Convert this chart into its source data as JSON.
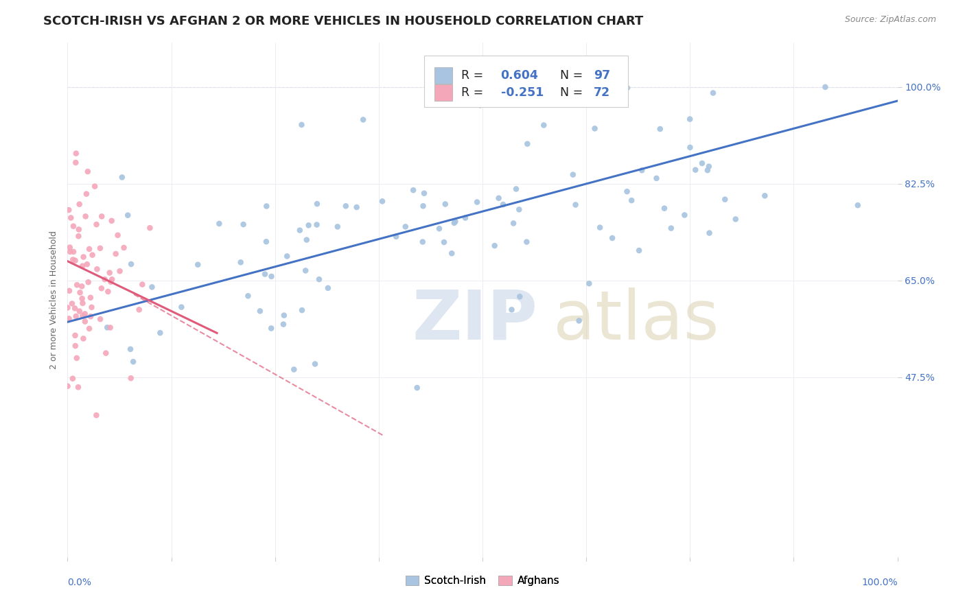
{
  "title": "SCOTCH-IRISH VS AFGHAN 2 OR MORE VEHICLES IN HOUSEHOLD CORRELATION CHART",
  "source": "Source: ZipAtlas.com",
  "ylabel": "2 or more Vehicles in Household",
  "legend_blue_r": "0.604",
  "legend_blue_n": "97",
  "legend_pink_r": "-0.251",
  "legend_pink_n": "72",
  "legend_label_blue": "Scotch-Irish",
  "legend_label_pink": "Afghans",
  "blue_color": "#a8c4e0",
  "blue_line_color": "#4472c4",
  "pink_color": "#f4a7b9",
  "pink_line_color": "#e05a7a",
  "title_fontsize": 13,
  "axis_label_fontsize": 9,
  "tick_fontsize": 10,
  "source_fontsize": 9,
  "watermark_color": "#c8d8e8",
  "watermark_atlas_color": "#d4c8a0",
  "right_tick_color": "#4472c4",
  "xmin": 0.0,
  "xmax": 1.0,
  "ymin": 0.15,
  "ymax": 1.08,
  "yticks": [
    0.475,
    0.65,
    0.825,
    1.0
  ],
  "ytick_labels": [
    "47.5%",
    "65.0%",
    "82.5%",
    "100.0%"
  ]
}
